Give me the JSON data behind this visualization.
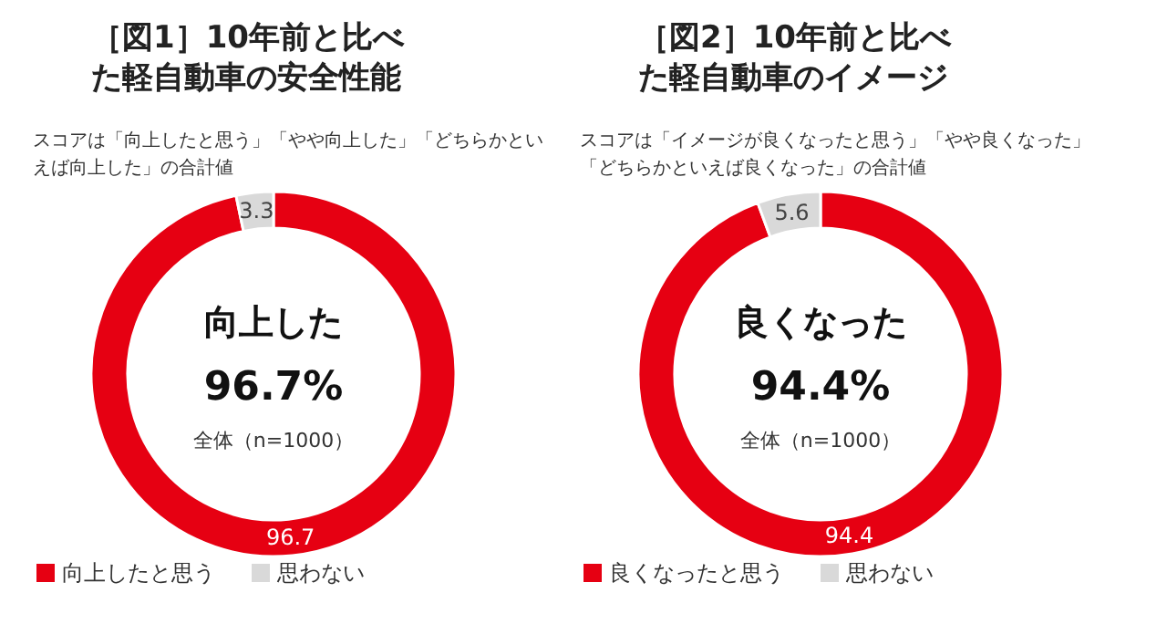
{
  "chart_data": [
    {
      "type": "donut",
      "title": "［図1］10年前と比べた軽自動車の安全性能",
      "categories": [
        "向上したと思う",
        "思わない"
      ],
      "values": [
        96.7,
        3.3
      ],
      "colors": [
        "#e60012",
        "#d9d9d9"
      ],
      "data_labels": true,
      "legend": "bottom",
      "annotations": [
        "スコアは「向上したと思う」「やや向上した」「どちらかといえば向上した」の合計値",
        "向上した",
        "96.7%",
        "全体（n=1000）"
      ]
    },
    {
      "type": "donut",
      "title": "［図2］10年前と比べた軽自動車のイメージ",
      "categories": [
        "良くなったと思う",
        "思わない"
      ],
      "values": [
        94.4,
        5.6
      ],
      "colors": [
        "#e60012",
        "#d9d9d9"
      ],
      "data_labels": true,
      "legend": "bottom",
      "annotations": [
        "スコアは「イメージが良くなったと思う」「やや良くなった」「どちらかといえば良くなった」の合計値",
        "良くなった",
        "94.4%",
        "全体（n=1000）"
      ]
    }
  ]
}
